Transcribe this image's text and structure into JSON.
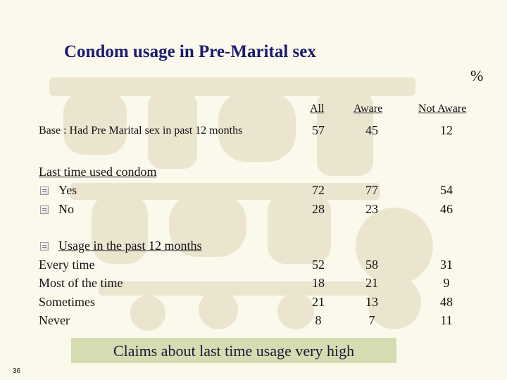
{
  "title": "Condom usage in Pre-Marital sex",
  "percent_sign": "%",
  "columns": [
    "All",
    "Aware",
    "Not Aware"
  ],
  "base": {
    "label": "Base : Had Pre Marital sex in past 12 months",
    "values": [
      "57",
      "45",
      "12"
    ]
  },
  "last_time": {
    "heading": "Last time used condom",
    "rows": [
      {
        "label": "Yes",
        "values": [
          "72",
          "77",
          "54"
        ]
      },
      {
        "label": "No",
        "values": [
          "28",
          "23",
          "46"
        ]
      }
    ]
  },
  "usage": {
    "heading": "Usage in the past 12 months",
    "rows": [
      {
        "label": "Every time",
        "values": [
          "52",
          "58",
          "31"
        ]
      },
      {
        "label": "Most of the time",
        "values": [
          "18",
          "21",
          "9"
        ]
      },
      {
        "label": "Sometimes",
        "values": [
          "21",
          "13",
          "48"
        ]
      },
      {
        "label": "Never",
        "values": [
          "8",
          "7",
          "11"
        ]
      }
    ]
  },
  "claims_text": "Claims about last time usage very high",
  "page_number": "36",
  "colors": {
    "background": "#fbf9ec",
    "title": "#1a1a6e",
    "claims_box": "#d5dcb2",
    "watermark": "#ebe5d0"
  }
}
